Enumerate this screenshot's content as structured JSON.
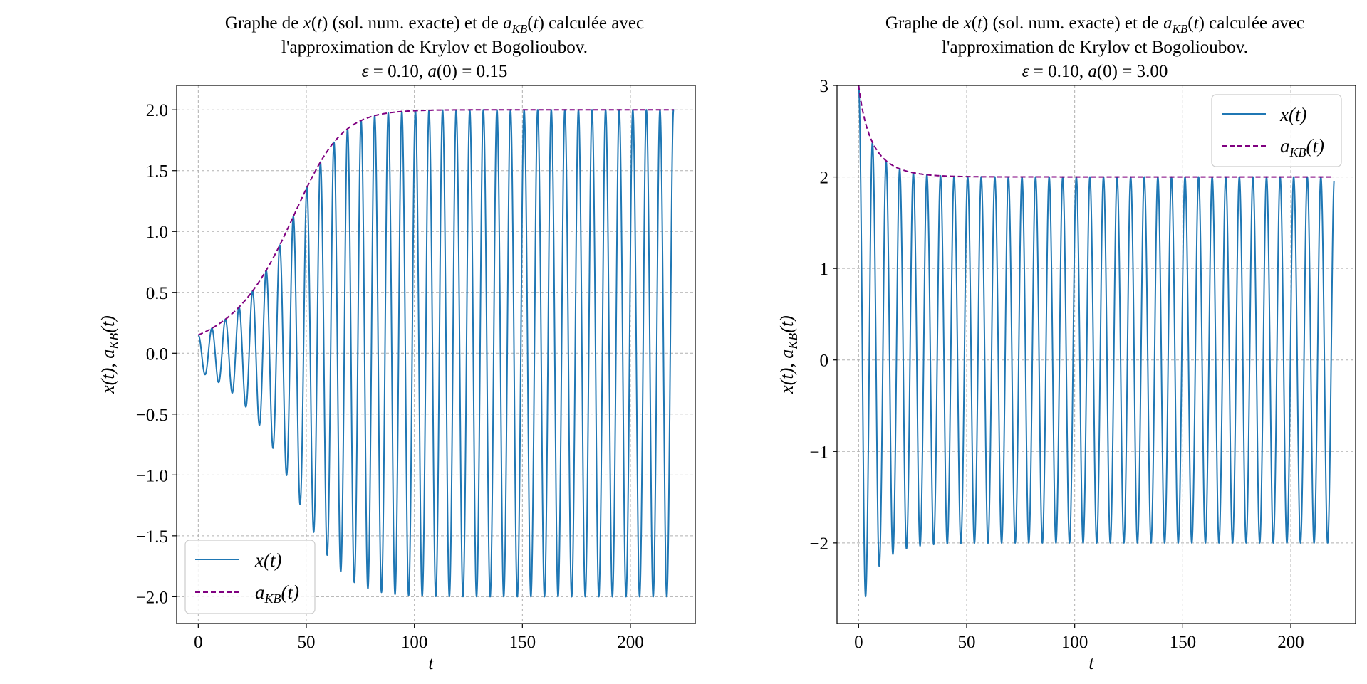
{
  "colors": {
    "x_series": "#1f77b4",
    "akb_series": "#800080",
    "grid": "#b0b0b0"
  },
  "chart_data": [
    {
      "type": "line",
      "title": [
        "Graphe de x(t) (sol. num. exacte) et de a_KB(t) calculée avec",
        "l'approximation de Krylov et Bogolioubov.",
        "ε = 0.10, a(0) = 0.15"
      ],
      "xlabel": "t",
      "ylabel": "x(t), a_KB(t)",
      "xlim": [
        -10,
        230
      ],
      "ylim": [
        -2.22,
        2.2
      ],
      "xticks": [
        0,
        50,
        100,
        150,
        200
      ],
      "xtick_labels": [
        "0",
        "50",
        "100",
        "150",
        "200"
      ],
      "yticks": [
        -2.0,
        -1.5,
        -1.0,
        -0.5,
        0.0,
        0.5,
        1.0,
        1.5,
        2.0
      ],
      "ytick_labels": [
        "−2.0",
        "−1.5",
        "−1.0",
        "−0.5",
        "0.0",
        "0.5",
        "1.0",
        "1.5",
        "2.0"
      ],
      "grid": true,
      "legend_position": "lower-left",
      "epsilon": 0.1,
      "a0": 0.15,
      "t_range": [
        0,
        220
      ],
      "series": [
        {
          "name": "x(t)",
          "style": "solid",
          "color": "#1f77b4",
          "description": "van der Pol oscillation x(t) = a(t)cos(t), amplitude growing from 0.15 to 2.0"
        },
        {
          "name": "a_KB(t)",
          "style": "dashed",
          "color": "#800080",
          "description": "KB envelope a(t) = 2 / sqrt(1 + (4/a0^2 - 1) e^(-eps t))",
          "x": [
            0,
            10,
            20,
            30,
            40,
            50,
            60,
            70,
            80,
            100,
            120,
            150,
            220
          ],
          "y": [
            0.15,
            0.24,
            0.4,
            0.64,
            0.99,
            1.39,
            1.7,
            1.87,
            1.95,
            1.99,
            2.0,
            2.0,
            2.0
          ]
        }
      ]
    },
    {
      "type": "line",
      "title": [
        "Graphe de x(t) (sol. num. exacte) et de a_KB(t) calculée avec",
        "l'approximation de Krylov et Bogolioubov.",
        "ε = 0.10, a(0) = 3.00"
      ],
      "xlabel": "t",
      "ylabel": "x(t), a_KB(t)",
      "xlim": [
        -10,
        230
      ],
      "ylim": [
        -2.88,
        3.0
      ],
      "xticks": [
        0,
        50,
        100,
        150,
        200
      ],
      "xtick_labels": [
        "0",
        "50",
        "100",
        "150",
        "200"
      ],
      "yticks": [
        -2,
        -1,
        0,
        1,
        2,
        3
      ],
      "ytick_labels": [
        "−2",
        "−1",
        "0",
        "1",
        "2",
        "3"
      ],
      "grid": true,
      "legend_position": "upper-right",
      "epsilon": 0.1,
      "a0": 3.0,
      "t_range": [
        0,
        220
      ],
      "series": [
        {
          "name": "x(t)",
          "style": "solid",
          "color": "#1f77b4",
          "description": "van der Pol oscillation starting at 3.0, first minimum near -2.58, settling to amplitude 2.0"
        },
        {
          "name": "a_KB(t)",
          "style": "dashed",
          "color": "#800080",
          "description": "KB envelope decaying from 3.0 to 2.0",
          "x": [
            0,
            5,
            10,
            15,
            20,
            30,
            40,
            60,
            220
          ],
          "y": [
            3.0,
            2.54,
            2.29,
            2.16,
            2.08,
            2.02,
            2.01,
            2.0,
            2.0
          ]
        }
      ]
    }
  ]
}
